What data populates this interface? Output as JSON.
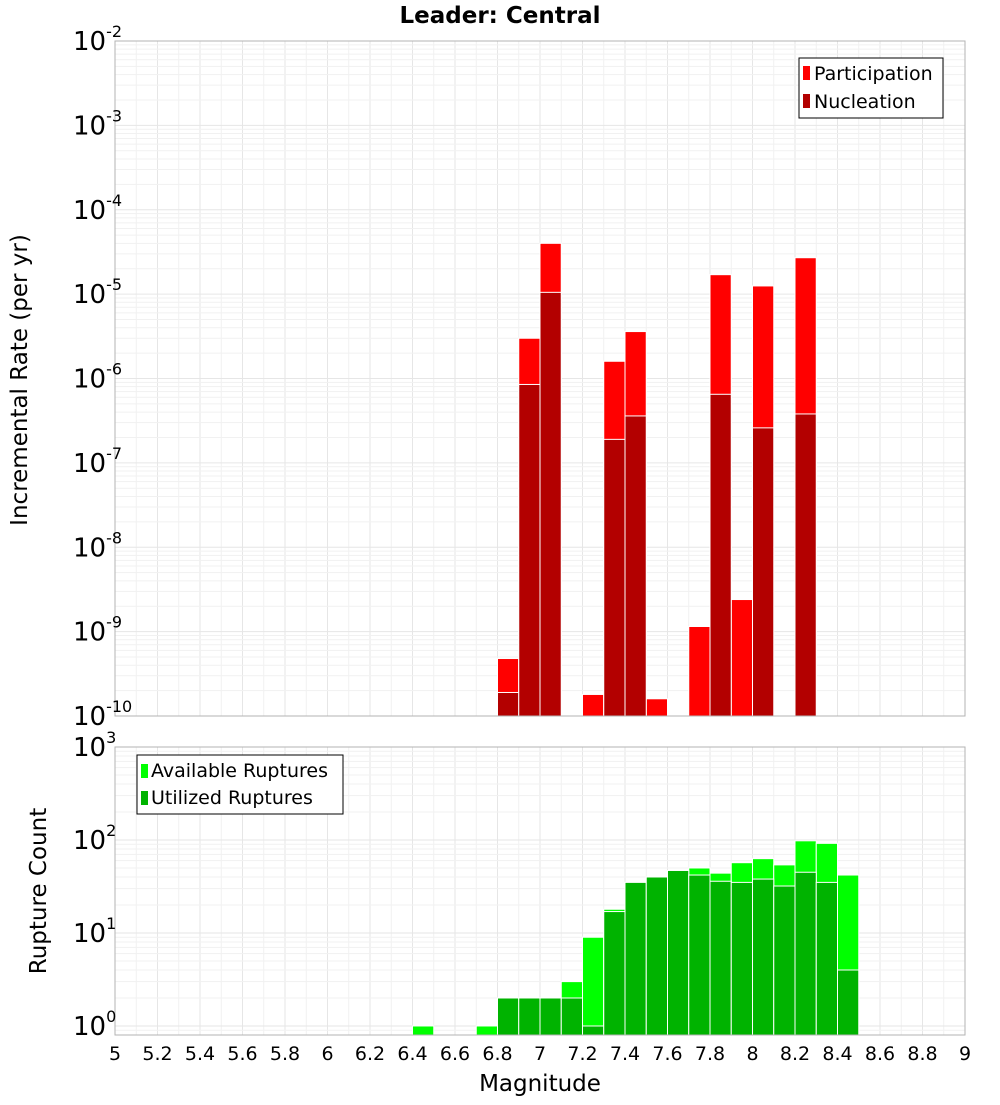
{
  "chart_data": [
    {
      "type": "bar",
      "title": "Leader: Central",
      "xlabel": "",
      "ylabel": "Incremental Rate (per yr)",
      "yscale": "log",
      "ylim": [
        1e-10,
        0.01
      ],
      "xlim": [
        5,
        9
      ],
      "bin_width": 0.1,
      "grid": true,
      "legend_position": "top-right",
      "series": [
        {
          "name": "Participation",
          "color": "#ff0000",
          "x": [
            6.85,
            6.95,
            7.05,
            7.25,
            7.35,
            7.45,
            7.55,
            7.75,
            7.85,
            7.95,
            8.05,
            8.25
          ],
          "values": [
            4.8e-10,
            3e-06,
            4e-05,
            1.8e-10,
            1.6e-06,
            3.6e-06,
            1.6e-10,
            1.15e-09,
            1.7e-05,
            2.4e-09,
            1.25e-05,
            2.7e-05
          ]
        },
        {
          "name": "Nucleation",
          "color": "#b30000",
          "x": [
            6.85,
            6.95,
            7.05,
            7.35,
            7.45,
            7.85,
            8.05,
            8.25
          ],
          "values": [
            1.9e-10,
            8.5e-07,
            1.05e-05,
            1.9e-07,
            3.6e-07,
            6.5e-07,
            2.6e-07,
            3.8e-07
          ]
        }
      ],
      "y_ticks": [
        {
          "base": "10",
          "exp": "-10"
        },
        {
          "base": "10",
          "exp": "-9"
        },
        {
          "base": "10",
          "exp": "-8"
        },
        {
          "base": "10",
          "exp": "-7"
        },
        {
          "base": "10",
          "exp": "-6"
        },
        {
          "base": "10",
          "exp": "-5"
        },
        {
          "base": "10",
          "exp": "-4"
        },
        {
          "base": "10",
          "exp": "-3"
        },
        {
          "base": "10",
          "exp": "-2"
        }
      ]
    },
    {
      "type": "bar",
      "title": "",
      "xlabel": "Magnitude",
      "ylabel": "Rupture Count",
      "yscale": "log",
      "ylim": [
        0.8,
        1000
      ],
      "xlim": [
        5,
        9
      ],
      "bin_width": 0.1,
      "grid": true,
      "legend_position": "top-left",
      "series": [
        {
          "name": "Available Ruptures",
          "color": "#00ff00",
          "x": [
            6.45,
            6.75,
            6.85,
            6.95,
            7.05,
            7.15,
            7.25,
            7.35,
            7.45,
            7.55,
            7.65,
            7.75,
            7.85,
            7.95,
            8.05,
            8.15,
            8.25,
            8.35,
            8.45
          ],
          "values": [
            1,
            1,
            2,
            2,
            2,
            3,
            9,
            18,
            35,
            40,
            47,
            50,
            44,
            57,
            63,
            54,
            98,
            92,
            42
          ]
        },
        {
          "name": "Utilized Ruptures",
          "color": "#00b300",
          "x": [
            6.85,
            6.95,
            7.05,
            7.15,
            7.25,
            7.35,
            7.45,
            7.55,
            7.65,
            7.75,
            7.85,
            7.95,
            8.05,
            8.15,
            8.25,
            8.35,
            8.45
          ],
          "values": [
            2,
            2,
            2,
            2,
            1,
            17,
            35,
            40,
            47,
            42,
            36,
            35,
            38,
            32,
            45,
            35,
            4
          ]
        }
      ],
      "y_ticks": [
        {
          "base": "10",
          "exp": "0"
        },
        {
          "base": "10",
          "exp": "1"
        },
        {
          "base": "10",
          "exp": "2"
        },
        {
          "base": "10",
          "exp": "3"
        }
      ],
      "x_tick_labels": [
        "5",
        "5.2",
        "5.4",
        "5.6",
        "5.8",
        "6",
        "6.2",
        "6.4",
        "6.6",
        "6.8",
        "7",
        "7.2",
        "7.4",
        "7.6",
        "7.8",
        "8",
        "8.2",
        "8.4",
        "8.6",
        "8.8",
        "9"
      ]
    }
  ]
}
